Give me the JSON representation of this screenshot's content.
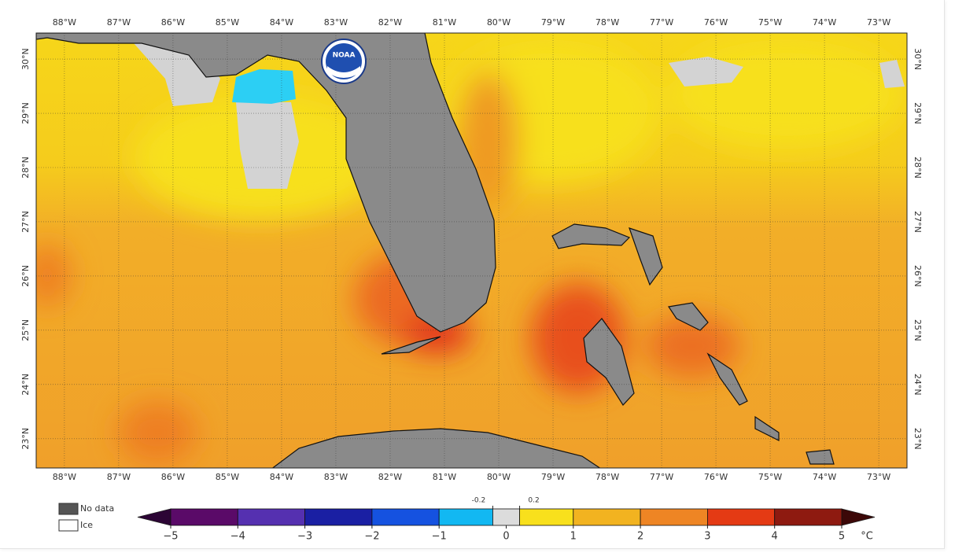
{
  "map": {
    "logo": "NOAA",
    "lon_range": [
      -88.52,
      -72.48
    ],
    "lat_range": [
      22.46,
      30.48
    ],
    "lon_ticks": [
      {
        "value": -88,
        "label": "88°W"
      },
      {
        "value": -87,
        "label": "87°W"
      },
      {
        "value": -86,
        "label": "86°W"
      },
      {
        "value": -85,
        "label": "85°W"
      },
      {
        "value": -84,
        "label": "84°W"
      },
      {
        "value": -83,
        "label": "83°W"
      },
      {
        "value": -82,
        "label": "82°W"
      },
      {
        "value": -81,
        "label": "81°W"
      },
      {
        "value": -80,
        "label": "80°W"
      },
      {
        "value": -79,
        "label": "79°W"
      },
      {
        "value": -78,
        "label": "78°W"
      },
      {
        "value": -77,
        "label": "77°W"
      },
      {
        "value": -76,
        "label": "76°W"
      },
      {
        "value": -75,
        "label": "75°W"
      },
      {
        "value": -74,
        "label": "74°W"
      },
      {
        "value": -73,
        "label": "73°W"
      }
    ],
    "lat_ticks": [
      {
        "value": 30,
        "label": "30°N"
      },
      {
        "value": 29,
        "label": "29°N"
      },
      {
        "value": 28,
        "label": "28°N"
      },
      {
        "value": 27,
        "label": "27°N"
      },
      {
        "value": 26,
        "label": "26°N"
      },
      {
        "value": 25,
        "label": "25°N"
      },
      {
        "value": 24,
        "label": "24°N"
      },
      {
        "value": 23,
        "label": "23°N"
      }
    ],
    "legend": {
      "no_data": "No data",
      "ice": "Ice"
    },
    "colorbar": {
      "range": [
        -5,
        5
      ],
      "bounds": [
        -5,
        -4,
        -3,
        -2,
        -1,
        -0.2,
        0.2,
        1,
        2,
        3,
        4,
        5
      ],
      "colors": [
        "#5a0a68",
        "#5530b0",
        "#1a1fa3",
        "#1552e0",
        "#12b8f2",
        "#dcdcdc",
        "#f8e01c",
        "#f2b320",
        "#ee8524",
        "#e43a14",
        "#8e1a10"
      ],
      "under_color": "#2c0535",
      "over_color": "#3c0808",
      "ticks": [
        {
          "value": -5,
          "label": "−5"
        },
        {
          "value": -4,
          "label": "−4"
        },
        {
          "value": -3,
          "label": "−3"
        },
        {
          "value": -2,
          "label": "−2"
        },
        {
          "value": -1,
          "label": "−1"
        },
        0,
        1,
        2,
        3,
        4,
        5
      ],
      "minor_ticks": [
        -0.2,
        0.2
      ],
      "unit": "°C"
    }
  }
}
